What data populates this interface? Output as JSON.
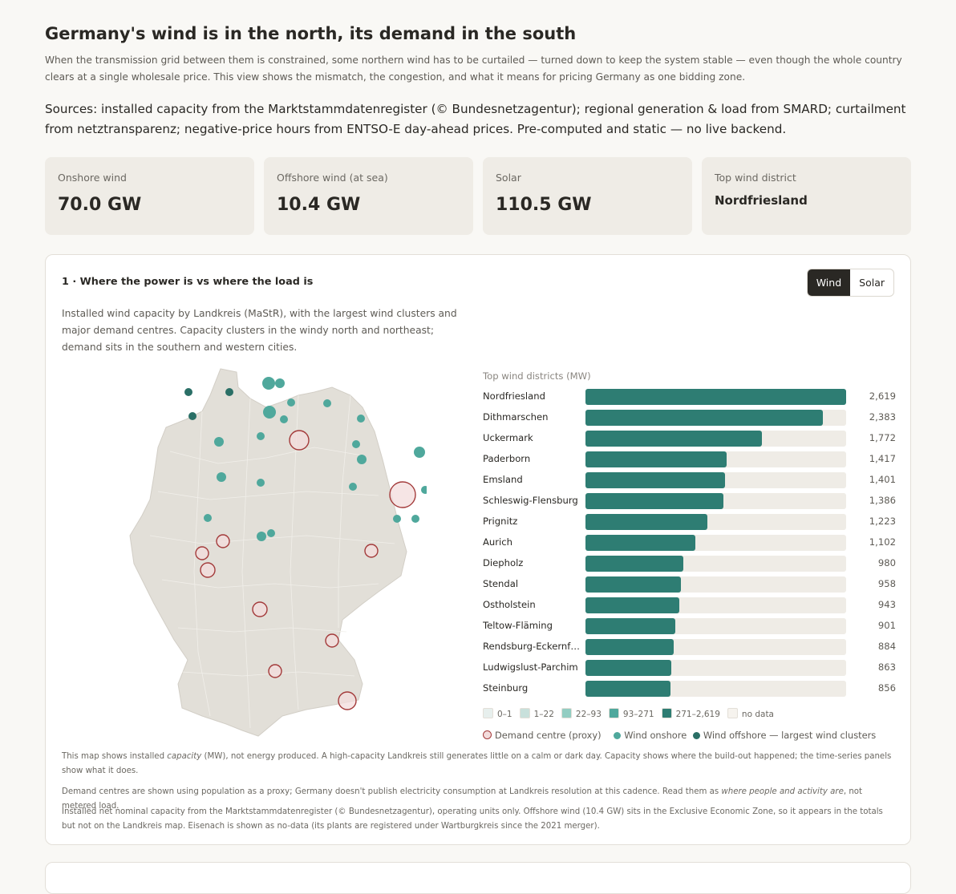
{
  "page": {
    "title": "Germany's wind is in the north, its demand in the south",
    "intro": "When the transmission grid between them is constrained, some northern wind has to be curtailed — turned down to keep the system stable — even though the whole country clears at a single wholesale price. This view shows the mismatch, the congestion, and what it means for pricing Germany as one bidding zone.",
    "sources": "Sources: installed capacity from the Marktstammdatenregister (© Bundesnetzagentur); regional generation & load from SMARD; curtailment from netztransparenz; negative-price hours from ENTSO-E day-ahead prices. Pre-computed and static — no live backend."
  },
  "stats": [
    {
      "label": "Onshore wind",
      "value": "70.0 GW"
    },
    {
      "label": "Offshore wind (at sea)",
      "value": "10.4 GW"
    },
    {
      "label": "Solar",
      "value": "110.5 GW"
    },
    {
      "label": "Top wind district",
      "value": "Nordfriesland"
    }
  ],
  "section1": {
    "title": "1 · Where the power is vs where the load is",
    "toggle": {
      "wind": "Wind",
      "solar": "Solar",
      "active": "wind"
    },
    "description": "Installed wind capacity by Landkreis (MaStR), with the largest wind clusters and major demand centres. Capacity clusters in the windy north and northeast; demand sits in the southern and western cities.",
    "bars_title": "Top wind districts (MW)",
    "bars_max": 2619,
    "bars": [
      {
        "name": "Nordfriesland",
        "value": 2619,
        "label": "2,619"
      },
      {
        "name": "Dithmarschen",
        "value": 2383,
        "label": "2,383"
      },
      {
        "name": "Uckermark",
        "value": 1772,
        "label": "1,772"
      },
      {
        "name": "Paderborn",
        "value": 1417,
        "label": "1,417"
      },
      {
        "name": "Emsland",
        "value": 1401,
        "label": "1,401"
      },
      {
        "name": "Schleswig-Flensburg",
        "value": 1386,
        "label": "1,386"
      },
      {
        "name": "Prignitz",
        "value": 1223,
        "label": "1,223"
      },
      {
        "name": "Aurich",
        "value": 1102,
        "label": "1,102"
      },
      {
        "name": "Diepholz",
        "value": 980,
        "label": "980"
      },
      {
        "name": "Stendal",
        "value": 958,
        "label": "958"
      },
      {
        "name": "Ostholstein",
        "value": 943,
        "label": "943"
      },
      {
        "name": "Teltow-Fläming",
        "value": 901,
        "label": "901"
      },
      {
        "name": "Rendsburg-Eckernförde",
        "value": 884,
        "label": "884"
      },
      {
        "name": "Ludwigslust-Parchim",
        "value": 863,
        "label": "863"
      },
      {
        "name": "Steinburg",
        "value": 856,
        "label": "856"
      }
    ],
    "legend_bins": [
      {
        "label": "0–1",
        "color": "#e7efed"
      },
      {
        "label": "1–22",
        "color": "#c8e0db"
      },
      {
        "label": "22–93",
        "color": "#93cdc2"
      },
      {
        "label": "93–271",
        "color": "#4fa89c"
      },
      {
        "label": "271–2,619",
        "color": "#2e7d73"
      },
      {
        "label": "no data",
        "color": "#f6f3ee"
      }
    ],
    "legend_markers": {
      "demand": "Demand centre (proxy)",
      "onshore": "Wind onshore",
      "offshore": "Wind offshore — largest wind clusters"
    },
    "notes": {
      "n1_a": "This map shows installed ",
      "n1_em": "capacity",
      "n1_b": " (MW), not energy produced. A high-capacity Landkreis still generates little on a calm or dark day. Capacity shows where the build-out happened; the time-series panels show what it does.",
      "n2_a": "Demand centres are shown using population as a proxy; Germany doesn't publish electricity consumption at Landkreis resolution at this cadence. Read them as ",
      "n2_em": "where people and activity are",
      "n2_b": ", not metered load.",
      "n3": "Installed net nominal capacity from the Marktstammdatenregister (© Bundesnetzagentur), operating units only. Offshore wind (10.4 GW) sits in the Exclusive Economic Zone, so it appears in the totals but not on the Landkreis map. Eisenach is shown as no-data (its plants are registered under Wartburgkreis since the 2021 merger)."
    }
  },
  "colors": {
    "wind_fill": "#2e7d73",
    "onshore_marker": "#4fa89c",
    "offshore_marker": "#2a6f66",
    "demand_ring": "#a33a3a",
    "map_fill": "#e2dfd8"
  }
}
